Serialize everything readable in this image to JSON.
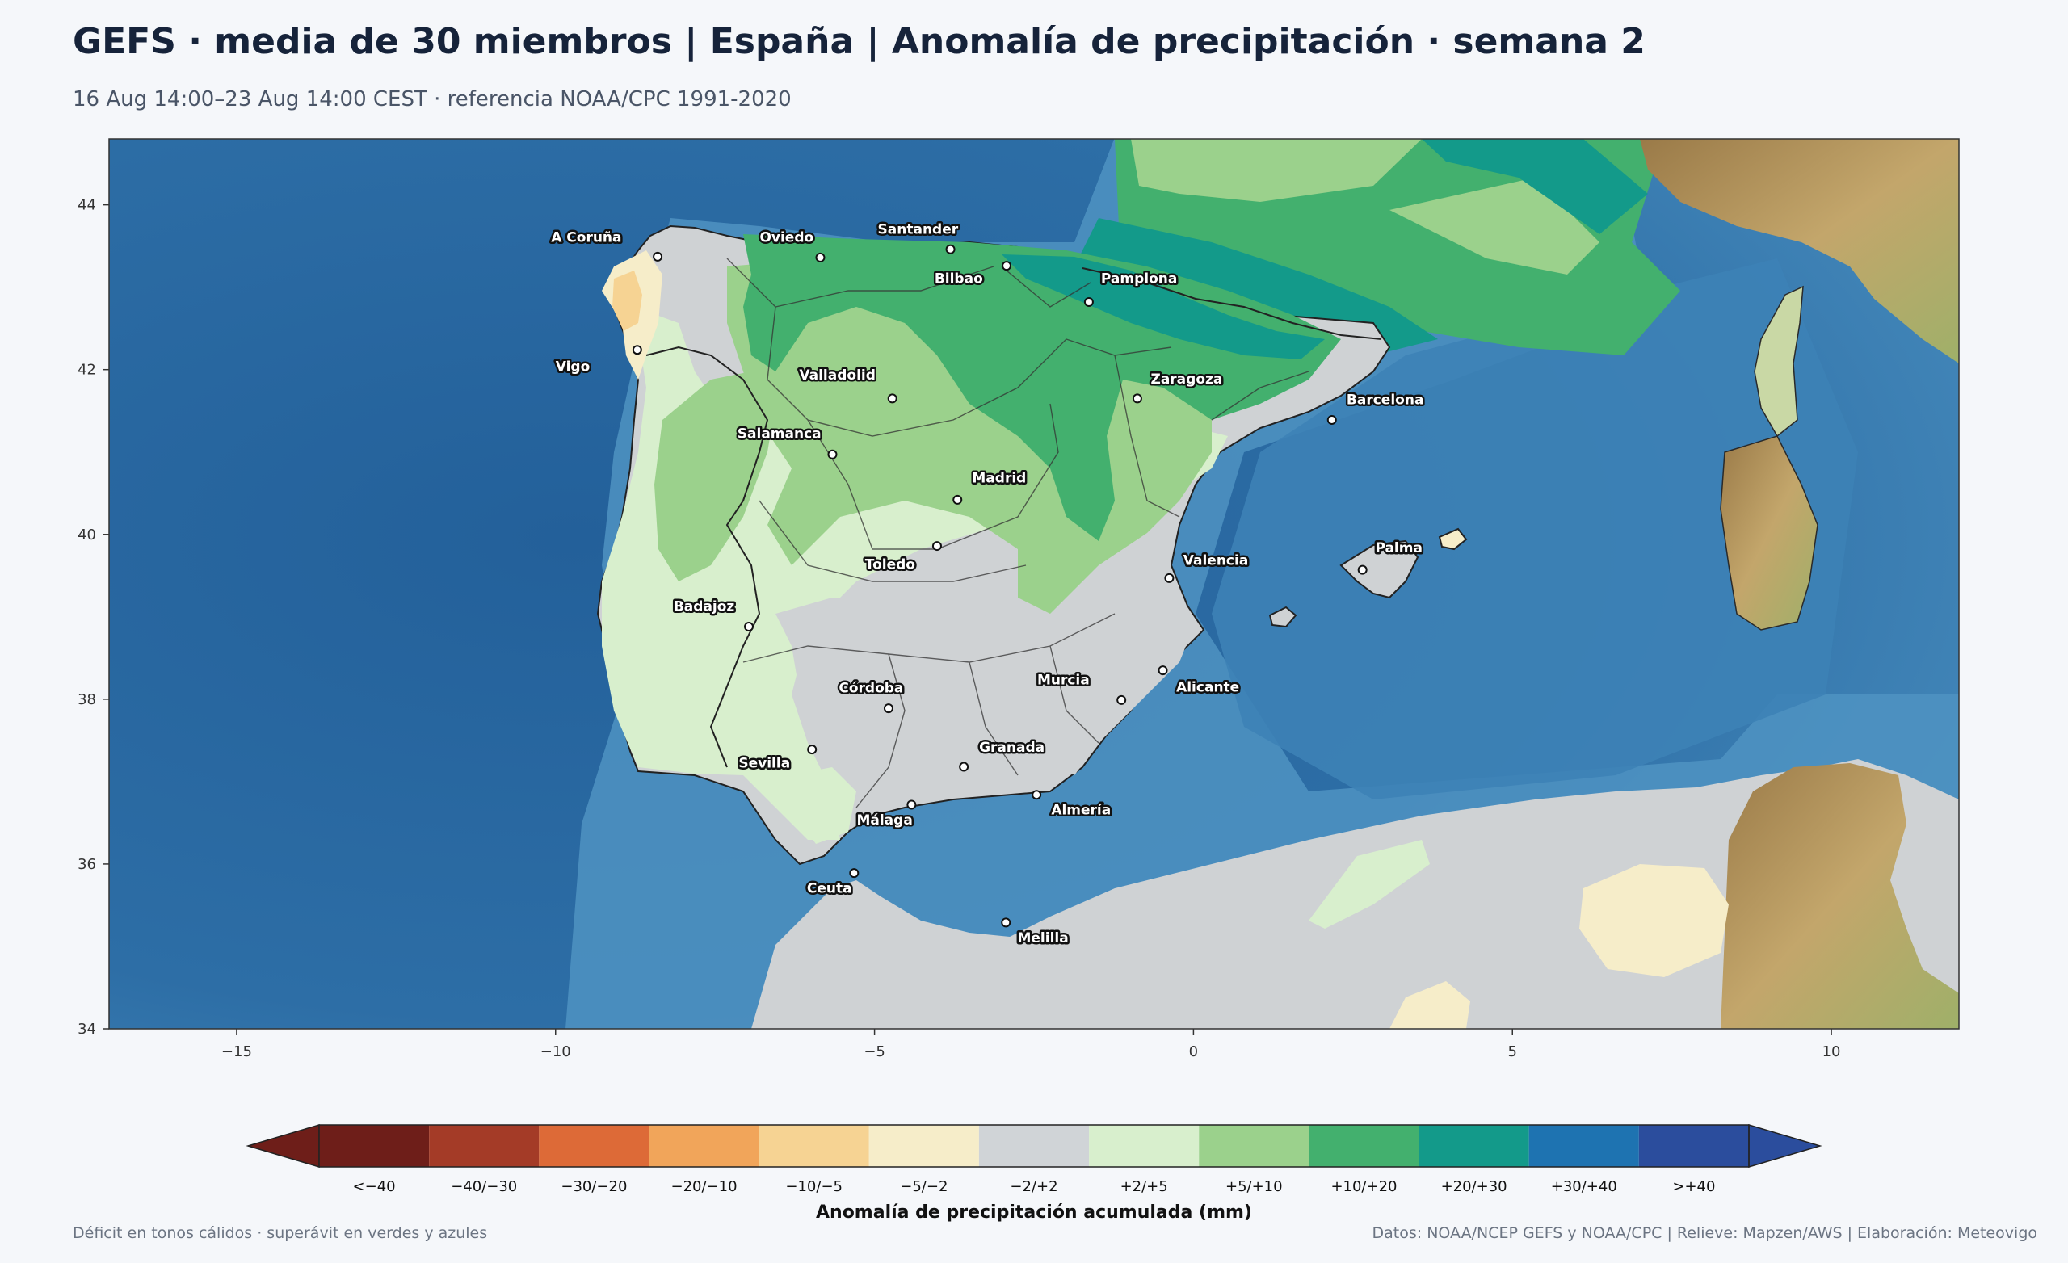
{
  "header": {
    "title": "GEFS · media de 30 miembros | España | Anomalía de precipitación · semana 2",
    "subtitle": "16 Aug 14:00–23 Aug 14:00 CEST · referencia NOAA/CPC 1991-2020"
  },
  "map": {
    "lon_range": [
      -17,
      12
    ],
    "lat_range": [
      34,
      44.8
    ],
    "x_ticks": [
      {
        "value": -15,
        "label": "−15"
      },
      {
        "value": -10,
        "label": "−10"
      },
      {
        "value": -5,
        "label": "−5"
      },
      {
        "value": 0,
        "label": "0"
      },
      {
        "value": 5,
        "label": "5"
      },
      {
        "value": 10,
        "label": "10"
      }
    ],
    "y_ticks": [
      {
        "value": 34,
        "label": "34"
      },
      {
        "value": 36,
        "label": "36"
      },
      {
        "value": 38,
        "label": "38"
      },
      {
        "value": 40,
        "label": "40"
      },
      {
        "value": 42,
        "label": "42"
      },
      {
        "value": 44,
        "label": "44"
      }
    ],
    "colors": {
      "sea": "#2f6fa6",
      "sea_light": "#4b8dbf",
      "land_gray": "#cfd2d4",
      "relief": "#b09760",
      "relief_green": "#a8b46e"
    },
    "cities": [
      {
        "name": "A Coruña",
        "lon": -8.4,
        "lat": 43.37,
        "label_lon": -10.07,
        "label_lat": 43.55
      },
      {
        "name": "Oviedo",
        "lon": -5.85,
        "lat": 43.36,
        "label_lon": -6.8,
        "label_lat": 43.55
      },
      {
        "name": "Santander",
        "lon": -3.81,
        "lat": 43.46,
        "label_lon": -4.95,
        "label_lat": 43.65
      },
      {
        "name": "Bilbao",
        "lon": -2.93,
        "lat": 43.26,
        "label_lon": -4.06,
        "label_lat": 43.05
      },
      {
        "name": "Pamplona",
        "lon": -1.64,
        "lat": 42.82,
        "label_lon": -1.45,
        "label_lat": 43.05
      },
      {
        "name": "Vigo",
        "lon": -8.72,
        "lat": 42.24,
        "label_lon": -10.0,
        "label_lat": 41.98
      },
      {
        "name": "Valladolid",
        "lon": -4.72,
        "lat": 41.65,
        "label_lon": -6.18,
        "label_lat": 41.88
      },
      {
        "name": "Zaragoza",
        "lon": -0.88,
        "lat": 41.65,
        "label_lon": -0.67,
        "label_lat": 41.83
      },
      {
        "name": "Barcelona",
        "lon": 2.17,
        "lat": 41.39,
        "label_lon": 2.4,
        "label_lat": 41.58
      },
      {
        "name": "Salamanca",
        "lon": -5.66,
        "lat": 40.97,
        "label_lon": -7.15,
        "label_lat": 41.17
      },
      {
        "name": "Madrid",
        "lon": -3.7,
        "lat": 40.42,
        "label_lon": -3.47,
        "label_lat": 40.63
      },
      {
        "name": "Valencia",
        "lon": -0.38,
        "lat": 39.47,
        "label_lon": -0.16,
        "label_lat": 39.63
      },
      {
        "name": "Palma",
        "lon": 2.65,
        "lat": 39.57,
        "label_lon": 2.85,
        "label_lat": 39.78
      },
      {
        "name": "Toledo",
        "lon": -4.02,
        "lat": 39.86,
        "label_lon": -5.15,
        "label_lat": 39.58
      },
      {
        "name": "Badajoz",
        "lon": -6.97,
        "lat": 38.88,
        "label_lon": -8.15,
        "label_lat": 39.07
      },
      {
        "name": "Córdoba",
        "lon": -4.78,
        "lat": 37.89,
        "label_lon": -5.56,
        "label_lat": 38.08
      },
      {
        "name": "Murcia",
        "lon": -1.13,
        "lat": 37.99,
        "label_lon": -2.45,
        "label_lat": 38.18
      },
      {
        "name": "Alicante",
        "lon": -0.48,
        "lat": 38.35,
        "label_lon": -0.27,
        "label_lat": 38.09
      },
      {
        "name": "Granada",
        "lon": -3.6,
        "lat": 37.18,
        "label_lon": -3.36,
        "label_lat": 37.36
      },
      {
        "name": "Sevilla",
        "lon": -5.98,
        "lat": 37.39,
        "label_lon": -7.13,
        "label_lat": 37.17
      },
      {
        "name": "Almería",
        "lon": -2.46,
        "lat": 36.84,
        "label_lon": -2.23,
        "label_lat": 36.6
      },
      {
        "name": "Málaga",
        "lon": -4.42,
        "lat": 36.72,
        "label_lon": -5.28,
        "label_lat": 36.48
      },
      {
        "name": "Ceuta",
        "lon": -5.32,
        "lat": 35.89,
        "label_lon": -6.06,
        "label_lat": 35.65
      },
      {
        "name": "Melilla",
        "lon": -2.94,
        "lat": 35.29,
        "label_lon": -2.76,
        "label_lat": 35.05
      }
    ]
  },
  "legend": {
    "title": "Anomalía de precipitación acumulada (mm)",
    "bins": [
      {
        "label": "<−40",
        "color": "#6e1e19"
      },
      {
        "label": "−40/−30",
        "color": "#a43b27"
      },
      {
        "label": "−30/−20",
        "color": "#dd6a37"
      },
      {
        "label": "−20/−10",
        "color": "#f1a55a"
      },
      {
        "label": "−10/−5",
        "color": "#f6d393"
      },
      {
        "label": "−5/−2",
        "color": "#f6edc9"
      },
      {
        "label": "−2/+2",
        "color": "#d0d4d7"
      },
      {
        "label": "+2/+5",
        "color": "#d8efcd"
      },
      {
        "label": "+5/+10",
        "color": "#9bd18c"
      },
      {
        "label": "+10/+20",
        "color": "#43b06e"
      },
      {
        "label": "+20/+30",
        "color": "#139a8a"
      },
      {
        "label": "+30/+40",
        "color": "#1e73b1"
      },
      {
        "label": ">+40",
        "color": "#2b4d9d"
      }
    ]
  },
  "footer": {
    "left": "Déficit en tonos cálidos · superávit en verdes y azules",
    "right": "Datos: NOAA/NCEP GEFS y NOAA/CPC | Relieve: Mapzen/AWS | Elaboración: Meteovigo"
  }
}
